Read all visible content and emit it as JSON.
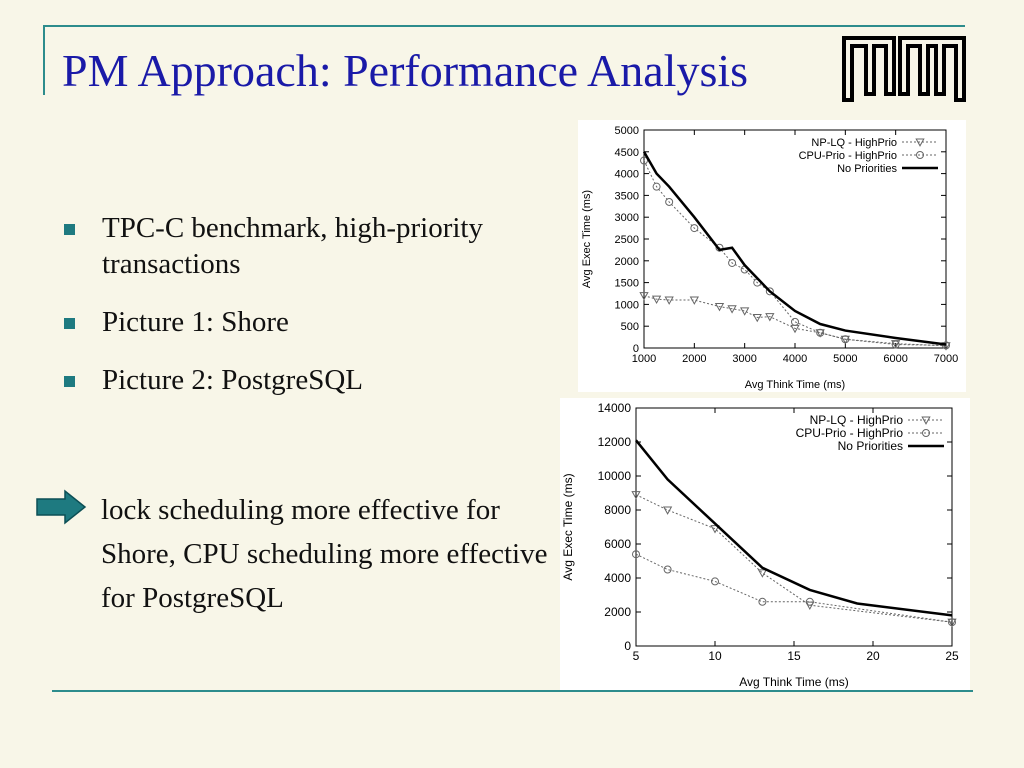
{
  "slide": {
    "title": "PM Approach: Performance Analysis",
    "bullets": [
      "TPC-C benchmark, high-priority transactions",
      "Picture 1: Shore",
      "Picture 2: PostgreSQL"
    ],
    "conclusion": "lock scheduling more effective for Shore, CPU scheduling more effective for PostgreSQL",
    "colors": {
      "title": "#1a1aa8",
      "accent": "#2d8c8c",
      "bullet": "#1e7a80",
      "background": "#f8f6e8",
      "arrow": "#1e7a80"
    },
    "icons": {
      "logo": "tum-logo",
      "arrow": "right-arrow-icon",
      "bullet": "square-bullet-icon"
    }
  },
  "chart_data": [
    {
      "type": "line",
      "title": "",
      "xlabel": "Avg Think Time (ms)",
      "ylabel": "Avg Exec Time (ms)",
      "xlim": [
        1000,
        7000
      ],
      "ylim": [
        0,
        5000
      ],
      "xticks": [
        1000,
        2000,
        3000,
        4000,
        5000,
        6000,
        7000
      ],
      "yticks": [
        0,
        500,
        1000,
        1500,
        2000,
        2500,
        3000,
        3500,
        4000,
        4500,
        5000
      ],
      "legend_position": "top-right",
      "grid": false,
      "series": [
        {
          "name": "NP-LQ - HighPrio",
          "style": "dotted",
          "marker": "triangle-down",
          "x": [
            1000,
            1250,
            1500,
            2000,
            2500,
            2750,
            3000,
            3250,
            3500,
            4000,
            4500,
            5000,
            6000,
            7000
          ],
          "y": [
            1200,
            1120,
            1100,
            1100,
            950,
            900,
            850,
            700,
            720,
            450,
            350,
            200,
            100,
            50
          ]
        },
        {
          "name": "CPU-Prio - HighPrio",
          "style": "dotted",
          "marker": "circle",
          "x": [
            1000,
            1250,
            1500,
            2000,
            2500,
            2750,
            3000,
            3250,
            3500,
            4000,
            4500,
            5000,
            6000,
            7000
          ],
          "y": [
            4300,
            3700,
            3350,
            2750,
            2300,
            1950,
            1800,
            1500,
            1300,
            600,
            350,
            200,
            80,
            60
          ]
        },
        {
          "name": "No Priorities",
          "style": "solid-thick",
          "marker": "none",
          "x": [
            1000,
            1250,
            1500,
            2000,
            2500,
            2750,
            3000,
            3500,
            4000,
            4500,
            5000,
            6000,
            7000
          ],
          "y": [
            4500,
            4000,
            3700,
            3000,
            2250,
            2300,
            1900,
            1300,
            850,
            550,
            400,
            230,
            80
          ]
        }
      ]
    },
    {
      "type": "line",
      "title": "",
      "xlabel": "Avg Think Time (ms)",
      "ylabel": "Avg Exec Time (ms)",
      "xlim": [
        5,
        25
      ],
      "ylim": [
        0,
        14000
      ],
      "xticks": [
        5,
        10,
        15,
        20,
        25
      ],
      "yticks": [
        0,
        2000,
        4000,
        6000,
        8000,
        10000,
        12000,
        14000
      ],
      "legend_position": "top-right",
      "grid": false,
      "series": [
        {
          "name": "NP-LQ - HighPrio",
          "style": "dotted",
          "marker": "triangle-down",
          "x": [
            5,
            7,
            10,
            13,
            16,
            25
          ],
          "y": [
            8900,
            8000,
            6900,
            4300,
            2400,
            1400
          ]
        },
        {
          "name": "CPU-Prio - HighPrio",
          "style": "dotted",
          "marker": "circle",
          "x": [
            5,
            7,
            10,
            13,
            16,
            25
          ],
          "y": [
            5400,
            4500,
            3800,
            2600,
            2600,
            1400
          ]
        },
        {
          "name": "No Priorities",
          "style": "solid-thick",
          "marker": "none",
          "x": [
            5,
            7,
            10,
            13,
            16,
            19,
            25
          ],
          "y": [
            12100,
            9800,
            7200,
            4600,
            3300,
            2500,
            1800
          ]
        }
      ]
    }
  ]
}
